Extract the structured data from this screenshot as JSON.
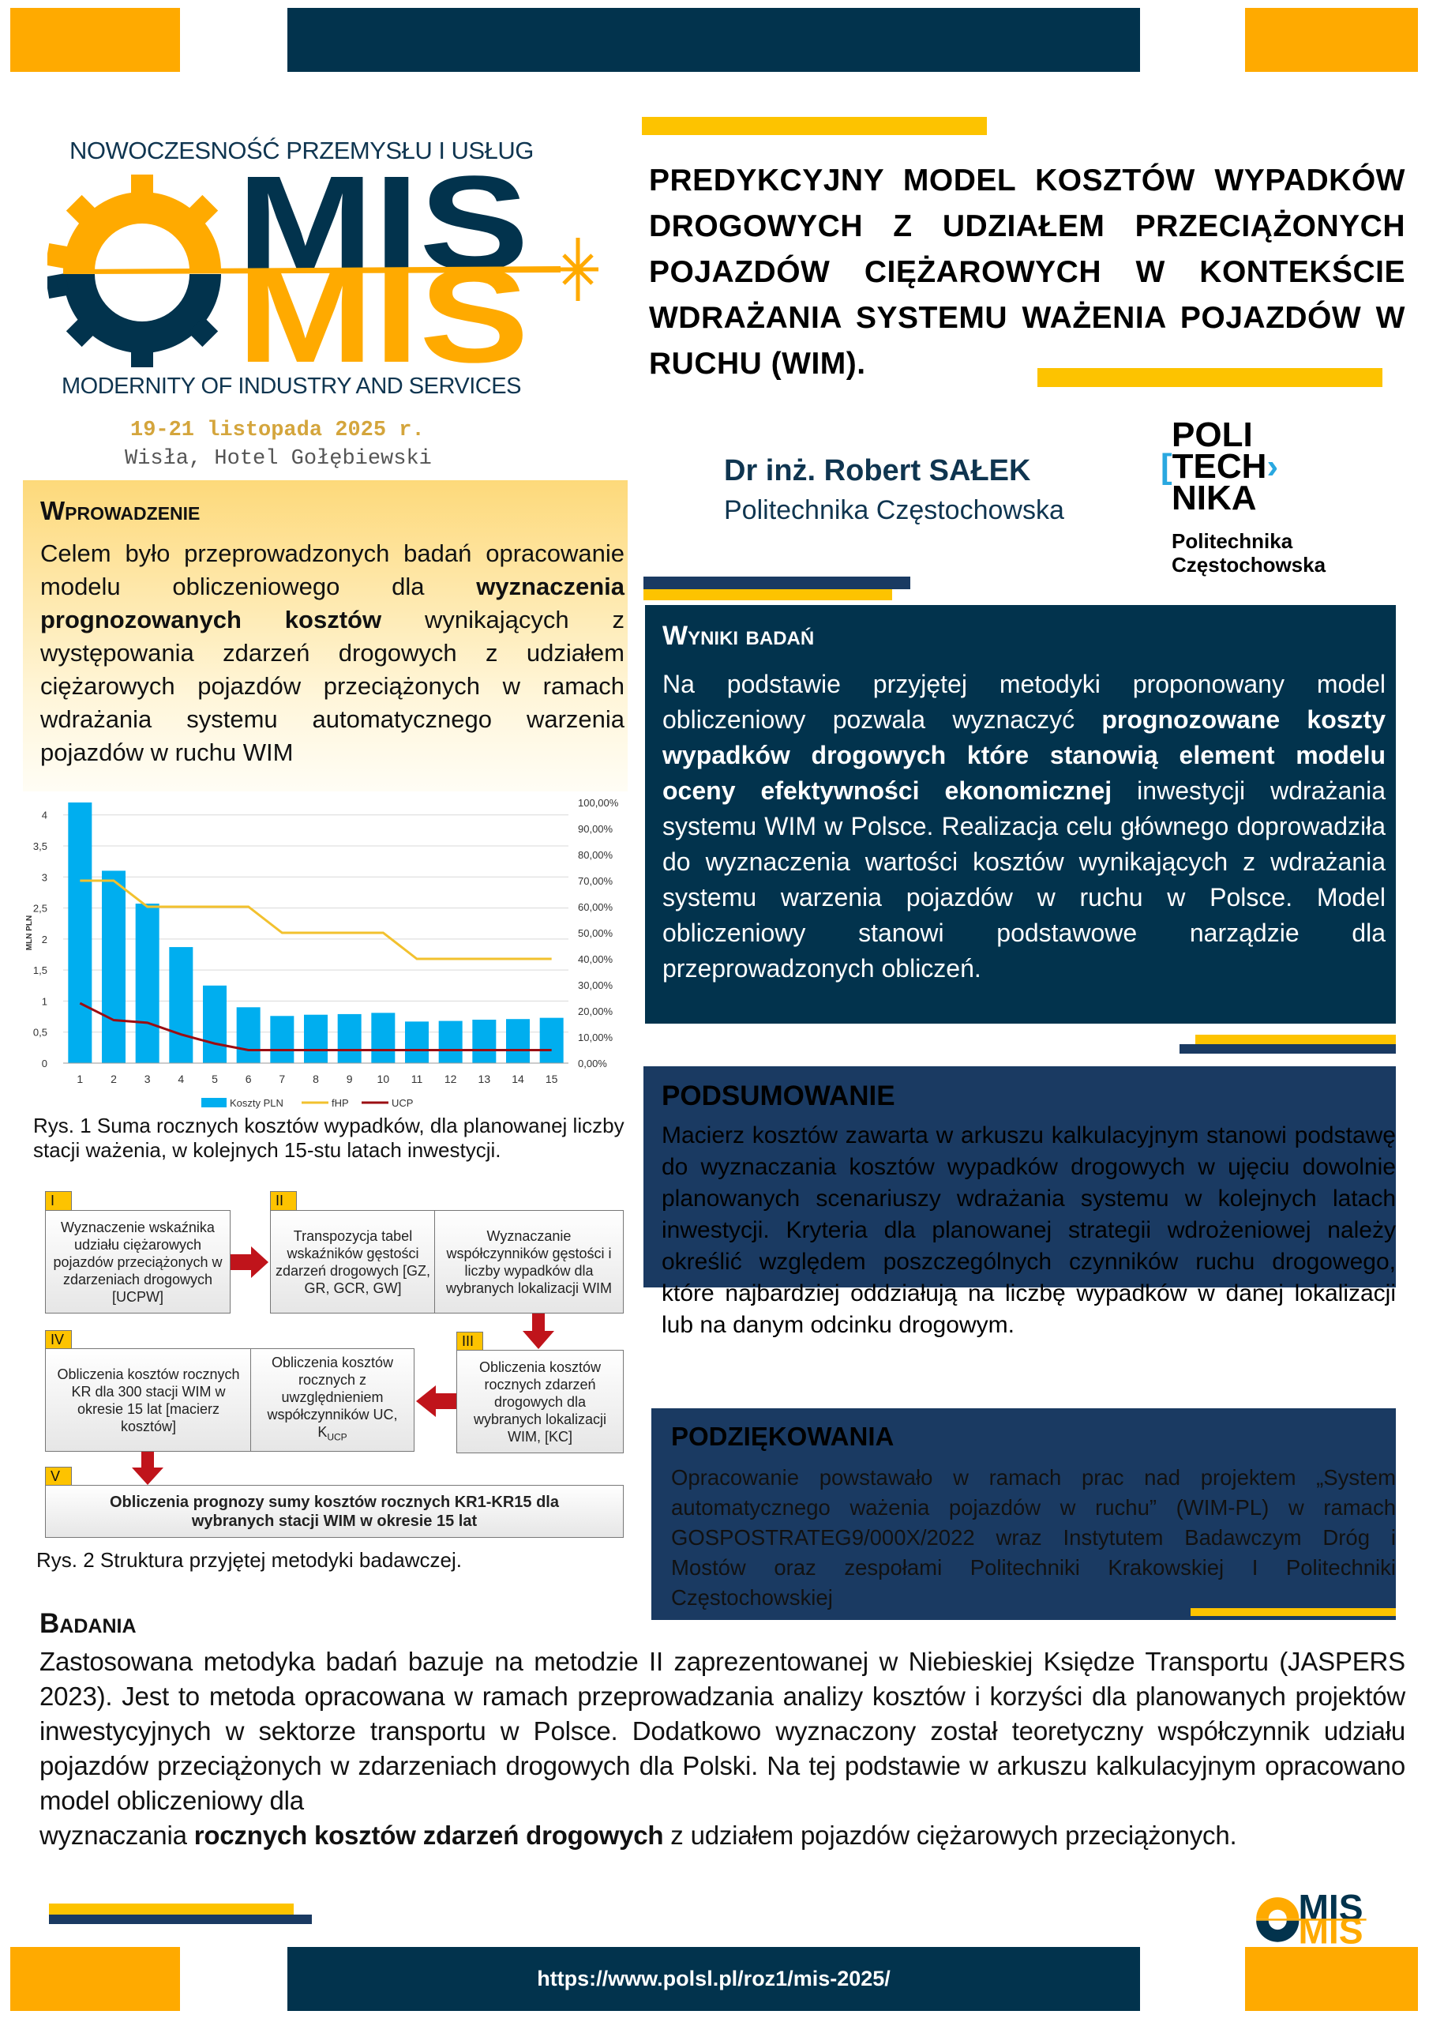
{
  "conference": {
    "name_pl": "NOWOCZESNOŚĆ PRZEMYSŁU I USŁUG",
    "logo_text": "MIS",
    "name_en": "MODERNITY OF INDUSTRY AND SERVICES",
    "dates": "19-21 listopada 2025 r.",
    "venue": "Wisła, Hotel Gołębiewski",
    "url": "https://www.polsl.pl/roz1/mis-2025/"
  },
  "title": "PREDYKCYJNY MODEL KOSZTÓW WYPADKÓW DROGOWYCH Z UDZIAŁEM PRZECIĄŻONYCH POJAZDÓW CIĘŻAROWYCH W KONTEKŚCIE WDRAŻANIA SYSTEMU WAŻENIA POJAZDÓW W RUCHU (WIM).",
  "author": {
    "name": "Dr inż. Robert SAŁEK",
    "affiliation": "Politechnika Częstochowska"
  },
  "university_logo": {
    "line1": "POLI",
    "line2": "TECH",
    "line3": "NIKA",
    "name1": "Politechnika",
    "name2": "Częstochowska"
  },
  "intro": {
    "heading": "Wprowadzenie",
    "word_a": "Celem",
    "word_b": "było",
    "text1": " przeprowadzonych badań opracowanie modelu obliczeniowego dla ",
    "bold": "wyznaczenia prognozowanych kosztów",
    "text2": " wynikających z występowania zdarzeń drogowych z udziałem ciężarowych pojazdów przeciążonych w ramach wdrażania systemu automatycznego warzenia pojazdów w ruchu WIM"
  },
  "results": {
    "heading": "Wyniki badań",
    "text1": "Na podstawie przyjętej metodyki proponowany model obliczeniowy pozwala wyznaczyć ",
    "bold": "prognozowane koszty wypadków drogowych które stanowią element modelu oceny efektywności ekonomicznej",
    "text2": " inwestycji wdrażania systemu WIM w Polsce. Realizacja celu głównego doprowadziła do wyznaczenia wartości kosztów wynikających z wdrażania systemu warzenia pojazdów w ruchu w Polsce. Model obliczeniowy stanowi podstawowe narządzie dla przeprowadzonych obliczeń."
  },
  "summary": {
    "heading": "PODSUMOWANIE",
    "text": "Macierz kosztów zawarta w arkuszu kalkulacyjnym stanowi podstawę do wyznaczania kosztów wypadków drogowych w ujęciu dowolnie planowanych scenariuszy wdrażania systemu w kolejnych latach inwestycji. Kryteria dla planowanej strategii wdrożeniowej należy określić względem poszczególnych czynników ruchu drogowego, które najbardziej oddziałują na liczbę wypadków w danej lokalizacji lub na danym odcinku drogowym."
  },
  "acknowledgements": {
    "heading": "PODZIĘKOWANIA",
    "text": "Opracowanie powstawało w ramach prac nad projektem „System automatycznego ważenia pojazdów w ruchu” (WIM-PL) w ramach GOSPOSTRATEG9/000X/2022 wraz Instytutem Badawczym Dróg i Mostów oraz zespołami Politechniki Krakowskiej I Politechniki Częstochowskiej"
  },
  "research": {
    "heading": "Badania",
    "text1": "Zastosowana metodyka badań bazuje na metodzie II zaprezentowanej w Niebieskiej Księdze Transportu (JASPERS 2023). Jest to metoda opracowana w ramach przeprowadzania analizy kosztów i korzyści dla planowanych projektów inwestycyjnych w sektorze transportu w Polsce. Dodatkowo wyznaczony został teoretyczny współczynnik udziału pojazdów przeciążonych w zdarzeniach drogowych dla Polski. Na tej podstawie w arkuszu kalkulacyjnym opracowano model obliczeniowy dla",
    "text2": "wyznaczania ",
    "bold": "rocznych kosztów zdarzeń drogowych",
    "text3": " z udziałem pojazdów ciężarowych przeciążonych."
  },
  "figure1_caption": "Rys. 1 Suma rocznych kosztów wypadków, dla planowanej liczby stacji ważenia, w kolejnych 15-stu latach inwestycji.",
  "figure2_caption": "Rys. 2 Struktura przyjętej metodyki badawczej.",
  "diagram": {
    "steps": [
      {
        "tag": "I",
        "text": "Wyznaczenie wskaźnika udziału ciężarowych pojazdów przeciążonych w zdarzeniach drogowych [UCPW]"
      },
      {
        "tag": "II",
        "text": "Transpozycja tabel wskaźników gęstości zdarzeń drogowych [GZ, GR, GCR, GW]",
        "text_b": "Wyznaczanie współczynników gęstości i liczby wypadków dla wybranych lokalizacji WIM"
      },
      {
        "tag": "III",
        "text": "Obliczenia kosztów rocznych zdarzeń drogowych dla wybranych lokalizacji WIM, [KC]"
      },
      {
        "tag": "IV",
        "text": "Obliczenia kosztów rocznych KR dla 300 stacji WIM w okresie 15 lat [macierz kosztów]",
        "text_b": "Obliczenia kosztów rocznych z uwzględnieniem współczynników UC, K",
        "text_b_sub": "UCP"
      },
      {
        "tag": "V",
        "text": "Obliczenia prognozy sumy kosztów rocznych KR1-KR15 dla wybranych stacji WIM w okresie 15 lat"
      }
    ],
    "arrow_color": "#c0141b"
  },
  "colors": {
    "orange": "#FFAA00",
    "navy": "#02334d",
    "yellow": "#FDC300",
    "bar": "#00AEEF",
    "fhp": "#F2C12E",
    "ucp": "#9B0D12"
  },
  "chart_data": {
    "type": "bar",
    "categories": [
      "1",
      "2",
      "3",
      "4",
      "5",
      "6",
      "7",
      "8",
      "9",
      "10",
      "11",
      "12",
      "13",
      "14",
      "15"
    ],
    "ylabel": "MLN PLN",
    "ylim": [
      0,
      4.2
    ],
    "yticks": [
      "0",
      "0,5",
      "1",
      "1,5",
      "2",
      "2,5",
      "3",
      "3,5",
      "4"
    ],
    "y2lim": [
      0,
      100
    ],
    "y2ticks": [
      "0,00%",
      "10,00%",
      "20,00%",
      "30,00%",
      "40,00%",
      "50,00%",
      "60,00%",
      "70,00%",
      "80,00%",
      "90,00%",
      "100,00%"
    ],
    "grid": true,
    "legend_position": "bottom",
    "series": [
      {
        "name": "Koszty PLN",
        "type": "bar",
        "axis": "left",
        "values": [
          4.2,
          3.1,
          2.57,
          1.87,
          1.25,
          0.9,
          0.76,
          0.78,
          0.79,
          0.81,
          0.67,
          0.68,
          0.7,
          0.71,
          0.73
        ]
      },
      {
        "name": "fHP",
        "type": "line",
        "axis": "right",
        "values": [
          70,
          70,
          60,
          60,
          60,
          60,
          50,
          50,
          50,
          50,
          40,
          40,
          40,
          40,
          40
        ]
      },
      {
        "name": "UCP",
        "type": "line",
        "axis": "right",
        "values": [
          23,
          16.5,
          15.5,
          11,
          7.5,
          5,
          5,
          5,
          5,
          5,
          5,
          5,
          5,
          5,
          5
        ]
      }
    ]
  }
}
